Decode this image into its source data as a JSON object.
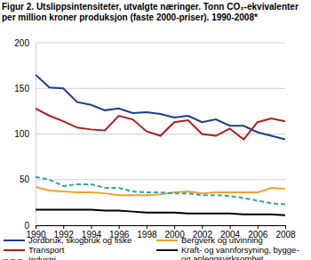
{
  "chart_data": {
    "type": "line",
    "title": "Figur 2. Utslippsintensiteter, utvalgte næringer. Tonn CO₂-ekvivalenter per million kroner produksjon (faste 2000-priser). 1990-2008*",
    "x": [
      1990,
      1991,
      1992,
      1993,
      1994,
      1995,
      1996,
      1997,
      1998,
      1999,
      2000,
      2001,
      2002,
      2003,
      2004,
      2005,
      2006,
      2007,
      2008
    ],
    "xlim": [
      1990,
      2008
    ],
    "xticks": [
      1990,
      1992,
      1994,
      1996,
      1998,
      2000,
      2002,
      2004,
      2006,
      2008
    ],
    "ylim": [
      0,
      200
    ],
    "yticks": [
      0,
      50,
      100,
      150,
      200
    ],
    "grid": true,
    "legend": "bottom",
    "series": [
      {
        "name": "Jordbruk, skogbruk og fiske",
        "color": "#173f8c",
        "line_style": "solid",
        "values": [
          165,
          151,
          150,
          135,
          132,
          126,
          128,
          123,
          124,
          122,
          118,
          120,
          113,
          116,
          109,
          109,
          102,
          98,
          94
        ]
      },
      {
        "name": "Bergverk og utvinning",
        "color": "#f0a030",
        "line_style": "solid",
        "values": [
          42,
          38,
          37,
          36,
          36,
          35,
          33,
          33,
          33,
          34,
          36,
          37,
          35,
          36,
          36,
          36,
          36,
          41,
          40
        ]
      },
      {
        "name": "Transport",
        "color": "#b01c1c",
        "line_style": "solid",
        "values": [
          128,
          120,
          114,
          107,
          105,
          104,
          120,
          116,
          103,
          98,
          113,
          115,
          100,
          98,
          106,
          94,
          113,
          117,
          114
        ]
      },
      {
        "name": "Kraft- og vannforsyning, bygge- og anleggsvirksomhet",
        "color": "#000000",
        "line_style": "solid",
        "values": [
          17,
          17,
          17,
          17,
          17,
          16,
          16,
          15,
          14,
          14,
          14,
          13,
          13,
          13,
          13,
          12,
          12,
          12,
          11
        ]
      },
      {
        "name": "Industri",
        "color": "#2ea3a6",
        "line_style": "dashed",
        "values": [
          53,
          50,
          43,
          45,
          45,
          41,
          41,
          37,
          36,
          36,
          35,
          35,
          33,
          33,
          32,
          30,
          27,
          24,
          23
        ]
      }
    ]
  }
}
